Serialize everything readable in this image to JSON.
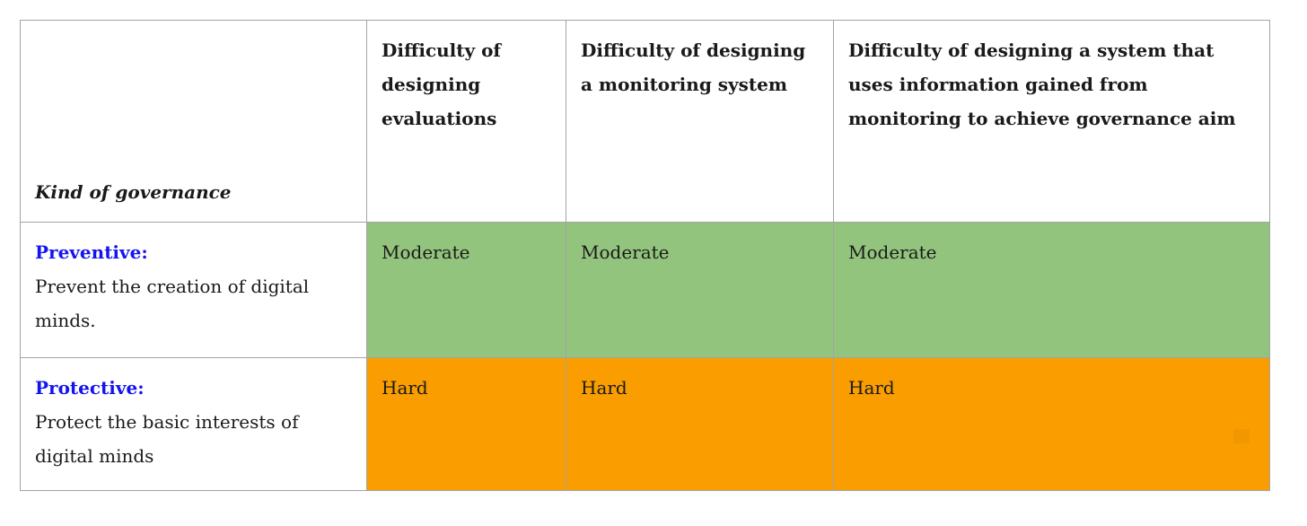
{
  "table": {
    "corner_header": "Kind of governance",
    "col_headers": [
      "Difficulty of designing evaluations",
      "Difficulty of designing a monitoring system",
      "Difficulty of designing a system that uses information gained from monitoring to achieve governance aim"
    ],
    "rows": [
      {
        "label": "Preventive:",
        "description": "Prevent the creation of digital minds.",
        "cells": [
          "Moderate",
          "Moderate",
          "Moderate"
        ],
        "cell_color": "#93c47d"
      },
      {
        "label": "Protective:",
        "description": "Protect the basic interests of digital minds",
        "cells": [
          "Hard",
          "Hard",
          "Hard"
        ],
        "cell_color": "#f99d00"
      }
    ]
  },
  "colors": {
    "moderate_green": "#93c47d",
    "hard_orange": "#f99d00",
    "row_label_blue": "#1414f0",
    "border_gray": "#a3a3a3",
    "text_black": "#1a1a1a",
    "background": "#ffffff"
  },
  "chart_data": {
    "type": "table",
    "title": "",
    "columns": [
      "Kind of governance",
      "Difficulty of designing evaluations",
      "Difficulty of designing a monitoring system",
      "Difficulty of designing a system that uses information gained from monitoring to achieve governance aim"
    ],
    "rows": [
      [
        "Preventive: Prevent the creation of digital minds.",
        "Moderate",
        "Moderate",
        "Moderate"
      ],
      [
        "Protective: Protect the basic interests of digital minds",
        "Hard",
        "Hard",
        "Hard"
      ]
    ],
    "cell_color_legend": {
      "Moderate": "#93c47d",
      "Hard": "#f99d00"
    }
  }
}
